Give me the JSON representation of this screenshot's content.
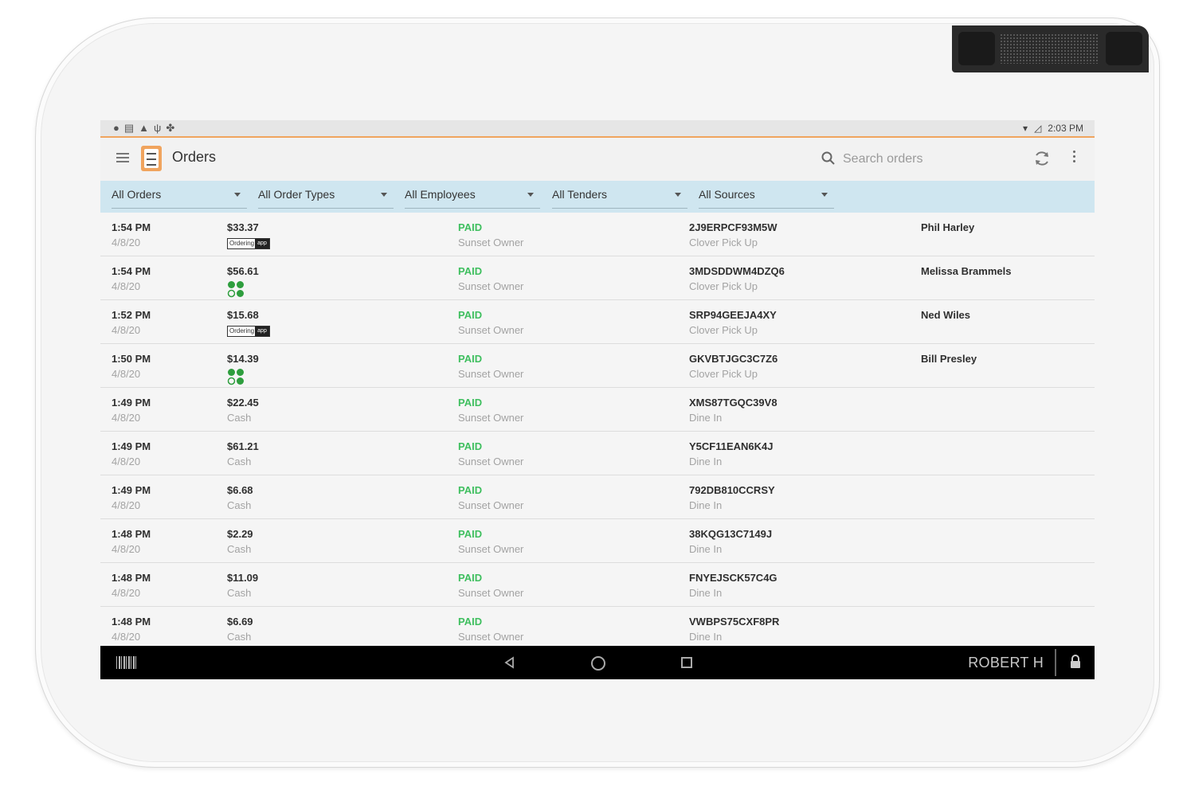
{
  "status_bar": {
    "time": "2:03 PM"
  },
  "app": {
    "title": "Orders"
  },
  "search": {
    "placeholder": "Search orders"
  },
  "filters": [
    {
      "label": "All Orders"
    },
    {
      "label": "All Order Types"
    },
    {
      "label": "All Employees"
    },
    {
      "label": "All Tenders"
    },
    {
      "label": "All Sources"
    }
  ],
  "orders": [
    {
      "time": "1:54 PM",
      "date": "4/8/20",
      "amount": "$33.37",
      "tender": "",
      "tender_icon": "online-ordering-badge",
      "status": "PAID",
      "employee": "Sunset Owner",
      "order_id": "2J9ERPCF93M5W",
      "order_type": "Clover Pick Up",
      "customer": "Phil Harley"
    },
    {
      "time": "1:54 PM",
      "date": "4/8/20",
      "amount": "$56.61",
      "tender": "",
      "tender_icon": "clover-logo-icon",
      "status": "PAID",
      "employee": "Sunset Owner",
      "order_id": "3MDSDDWM4DZQ6",
      "order_type": "Clover Pick Up",
      "customer": "Melissa Brammels"
    },
    {
      "time": "1:52 PM",
      "date": "4/8/20",
      "amount": "$15.68",
      "tender": "",
      "tender_icon": "online-ordering-badge",
      "status": "PAID",
      "employee": "Sunset Owner",
      "order_id": "SRP94GEEJA4XY",
      "order_type": "Clover Pick Up",
      "customer": "Ned Wiles"
    },
    {
      "time": "1:50 PM",
      "date": "4/8/20",
      "amount": "$14.39",
      "tender": "",
      "tender_icon": "clover-logo-icon",
      "status": "PAID",
      "employee": "Sunset Owner",
      "order_id": "GKVBTJGC3C7Z6",
      "order_type": "Clover Pick Up",
      "customer": "Bill Presley"
    },
    {
      "time": "1:49 PM",
      "date": "4/8/20",
      "amount": "$22.45",
      "tender": "Cash",
      "status": "PAID",
      "employee": "Sunset Owner",
      "order_id": "XMS87TGQC39V8",
      "order_type": "Dine In",
      "customer": ""
    },
    {
      "time": "1:49 PM",
      "date": "4/8/20",
      "amount": "$61.21",
      "tender": "Cash",
      "status": "PAID",
      "employee": "Sunset Owner",
      "order_id": "Y5CF11EAN6K4J",
      "order_type": "Dine In",
      "customer": ""
    },
    {
      "time": "1:49 PM",
      "date": "4/8/20",
      "amount": "$6.68",
      "tender": "Cash",
      "status": "PAID",
      "employee": "Sunset Owner",
      "order_id": "792DB810CCRSY",
      "order_type": "Dine In",
      "customer": ""
    },
    {
      "time": "1:48 PM",
      "date": "4/8/20",
      "amount": "$2.29",
      "tender": "Cash",
      "status": "PAID",
      "employee": "Sunset Owner",
      "order_id": "38KQG13C7149J",
      "order_type": "Dine In",
      "customer": ""
    },
    {
      "time": "1:48 PM",
      "date": "4/8/20",
      "amount": "$11.09",
      "tender": "Cash",
      "status": "PAID",
      "employee": "Sunset Owner",
      "order_id": "FNYEJSCK57C4G",
      "order_type": "Dine In",
      "customer": ""
    },
    {
      "time": "1:48 PM",
      "date": "4/8/20",
      "amount": "$6.69",
      "tender": "Cash",
      "status": "PAID",
      "employee": "Sunset Owner",
      "order_id": "VWBPS75CXF8PR",
      "order_type": "Dine In",
      "customer": ""
    }
  ],
  "badge": {
    "left": "Ordering",
    "right": "app"
  },
  "nav_bar": {
    "user": "ROBERT H"
  },
  "colors": {
    "accent": "#f0a45e",
    "paid": "#3fbf5f",
    "filter_bg": "#cfe6f0"
  }
}
